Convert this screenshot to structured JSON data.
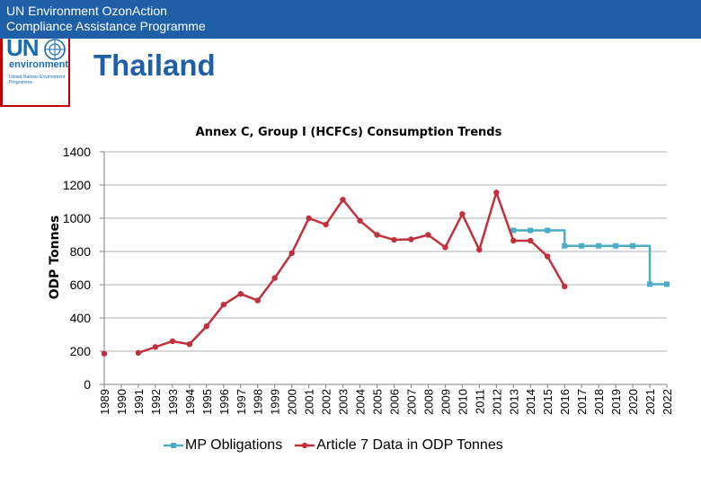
{
  "header": {
    "line1": "UN Environment OzonAction",
    "line2": "Compliance Assistance Programme",
    "bg_color": "#1f5fa8"
  },
  "logo": {
    "un_text": "UN",
    "env_text": "environment",
    "small_text": "United Nations Environment Programme",
    "icon": "un-emblem-icon",
    "color": "#1a6bb0"
  },
  "page": {
    "title": "Thailand"
  },
  "chart_data": {
    "type": "line",
    "title": "Annex C, Group I (HCFCs) Consumption Trends",
    "ylabel": "ODP Tonnes",
    "xlabel": "",
    "ylim": [
      0,
      1400
    ],
    "yticks": [
      0,
      200,
      400,
      600,
      800,
      1000,
      1200,
      1400
    ],
    "grid": true,
    "legend": "bottom",
    "x": [
      1989,
      1990,
      1991,
      1992,
      1993,
      1994,
      1995,
      1996,
      1997,
      1998,
      1999,
      2000,
      2001,
      2002,
      2003,
      2004,
      2005,
      2006,
      2007,
      2008,
      2009,
      2010,
      2011,
      2012,
      2013,
      2014,
      2015,
      2016,
      2017,
      2018,
      2019,
      2020,
      2021,
      2022
    ],
    "series": [
      {
        "name": "MP Obligations",
        "color": "#4bacc6",
        "marker": "square",
        "step": true,
        "values": [
          null,
          null,
          null,
          null,
          null,
          null,
          null,
          null,
          null,
          null,
          null,
          null,
          null,
          null,
          null,
          null,
          null,
          null,
          null,
          null,
          null,
          null,
          null,
          null,
          927,
          927,
          927,
          834,
          834,
          834,
          834,
          834,
          603,
          603
        ]
      },
      {
        "name": "Article 7 Data in ODP Tonnes",
        "color": "#c0313c",
        "marker": "circle",
        "step": false,
        "values": [
          185,
          null,
          190,
          225,
          260,
          242,
          350,
          480,
          545,
          505,
          640,
          790,
          1000,
          962,
          1112,
          985,
          900,
          870,
          873,
          900,
          825,
          1025,
          810,
          1155,
          865,
          865,
          770,
          590,
          null,
          null,
          null,
          null,
          null,
          null
        ]
      }
    ]
  }
}
